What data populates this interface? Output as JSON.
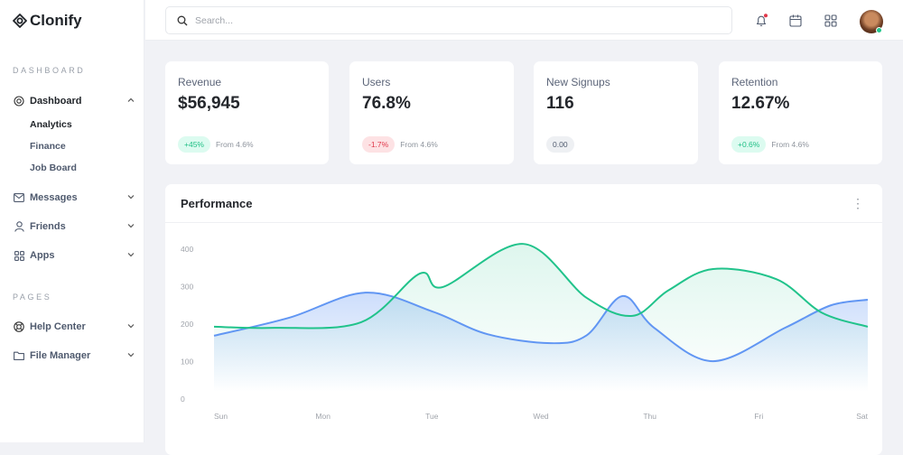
{
  "app": {
    "name": "Clonify"
  },
  "sidebar": {
    "sections": [
      {
        "title": "DASHBOARD"
      },
      {
        "title": "PAGES"
      }
    ],
    "dashboard": {
      "label": "Dashboard",
      "children": [
        "Analytics",
        "Finance",
        "Job Board"
      ]
    },
    "items": [
      {
        "label": "Messages",
        "icon": "mail-icon"
      },
      {
        "label": "Friends",
        "icon": "user-icon"
      },
      {
        "label": "Apps",
        "icon": "grid-icon"
      },
      {
        "label": "Help Center",
        "icon": "lifebuoy-icon"
      },
      {
        "label": "File Manager",
        "icon": "folder-icon"
      }
    ]
  },
  "header": {
    "search_placeholder": "Search...",
    "notification_dot": "#e0384a",
    "status_color": "#22c58b"
  },
  "cards": [
    {
      "label": "Revenue",
      "value": "$56,945",
      "badge": "+45%",
      "badge_type": "up",
      "note": "From 4.6%"
    },
    {
      "label": "Users",
      "value": "76.8%",
      "badge": "-1.7%",
      "badge_type": "down",
      "note": "From 4.6%"
    },
    {
      "label": "New Signups",
      "value": "116",
      "badge": "0.00",
      "badge_type": "neutral",
      "note": ""
    },
    {
      "label": "Retention",
      "value": "12.67%",
      "badge": "+0.6%",
      "badge_type": "up",
      "note": "From 4.6%"
    }
  ],
  "performance": {
    "title": "Performance"
  },
  "chart_data": {
    "type": "area",
    "categories": [
      "Sun",
      "Mon",
      "Tue",
      "Wed",
      "Thu",
      "Fri",
      "Sat"
    ],
    "ylim": [
      0,
      400
    ],
    "yticks": [
      "0",
      "100",
      "200",
      "300",
      "400"
    ],
    "grid": false,
    "series": [
      {
        "color": "#6196f3",
        "points": [
          [
            0,
            169
          ],
          [
            0.69,
            217
          ],
          [
            1.39,
            284
          ],
          [
            2.01,
            233
          ],
          [
            2.51,
            173
          ],
          [
            3.09,
            149
          ],
          [
            3.42,
            170
          ],
          [
            3.75,
            275
          ],
          [
            4.04,
            190
          ],
          [
            4.58,
            101
          ],
          [
            5.24,
            190
          ],
          [
            5.66,
            250
          ],
          [
            6,
            265
          ]
        ]
      },
      {
        "color": "#21c38b",
        "points": [
          [
            0,
            193
          ],
          [
            0.55,
            190
          ],
          [
            1.35,
            205
          ],
          [
            1.89,
            335
          ],
          [
            2.1,
            299
          ],
          [
            2.84,
            414
          ],
          [
            3.42,
            270
          ],
          [
            3.84,
            222
          ],
          [
            4.17,
            290
          ],
          [
            4.58,
            347
          ],
          [
            5.16,
            320
          ],
          [
            5.58,
            230
          ],
          [
            6,
            193
          ]
        ]
      }
    ]
  }
}
